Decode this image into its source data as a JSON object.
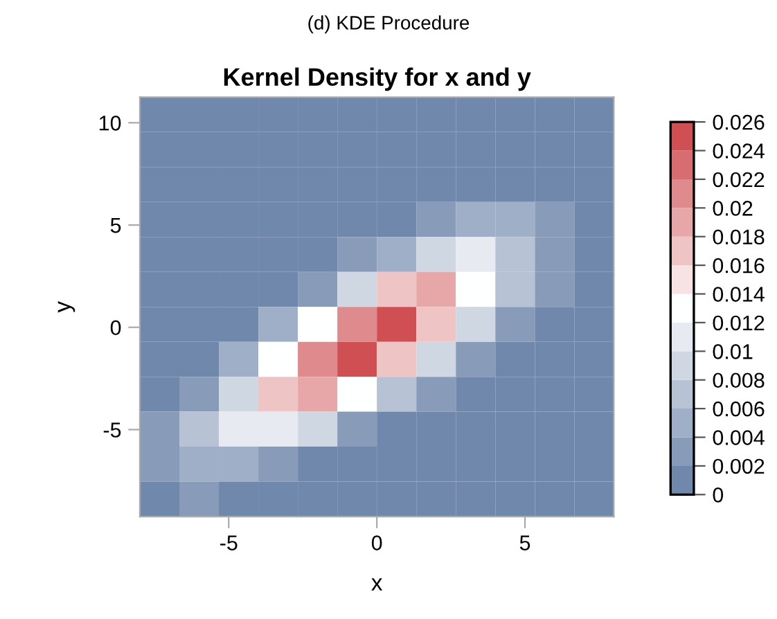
{
  "chart_data": {
    "type": "heatmap",
    "subtitle": "(d) KDE Procedure",
    "title": "Kernel Density for x and y",
    "xlabel": "x",
    "ylabel": "y",
    "xlim": [
      -8,
      8
    ],
    "ylim": [
      -9.25,
      11.25
    ],
    "xticks": [
      -5,
      0,
      5
    ],
    "yticks": [
      -5,
      0,
      5,
      10
    ],
    "clim": [
      0,
      0.026
    ],
    "cticks": [
      0,
      0.002,
      0.004,
      0.006,
      0.008,
      0.01,
      0.012,
      0.014,
      0.016,
      0.018,
      0.02,
      0.022,
      0.024,
      0.026
    ],
    "cells": [
      [
        0,
        0,
        0,
        0,
        0,
        0,
        0,
        0,
        0,
        0,
        0,
        0
      ],
      [
        0,
        0,
        0,
        0,
        0,
        0,
        0,
        0,
        0,
        0,
        0,
        0
      ],
      [
        0,
        0,
        0,
        0,
        0,
        0,
        0,
        0,
        0.001,
        0.001,
        0.001,
        0.001
      ],
      [
        0,
        0,
        0,
        0,
        0,
        0,
        0.001,
        0.002,
        0.004,
        0.004,
        0.003,
        0.001
      ],
      [
        0,
        0,
        0,
        0,
        0,
        0.002,
        0.005,
        0.009,
        0.01,
        0.007,
        0.003,
        0.001
      ],
      [
        0,
        0,
        0,
        0.001,
        0.003,
        0.009,
        0.016,
        0.018,
        0.013,
        0.006,
        0.002,
        0
      ],
      [
        0,
        0,
        0.001,
        0.004,
        0.012,
        0.021,
        0.024,
        0.017,
        0.008,
        0.002,
        0,
        0
      ],
      [
        0,
        0.001,
        0.004,
        0.012,
        0.021,
        0.024,
        0.017,
        0.008,
        0.002,
        0,
        0,
        0
      ],
      [
        0.001,
        0.003,
        0.009,
        0.017,
        0.018,
        0.013,
        0.006,
        0.002,
        0,
        0,
        0,
        0
      ],
      [
        0.002,
        0.006,
        0.01,
        0.011,
        0.008,
        0.003,
        0.001,
        0,
        0,
        0,
        0,
        0
      ],
      [
        0.003,
        0.004,
        0.005,
        0.003,
        0.001,
        0,
        0,
        0,
        0,
        0,
        0,
        0
      ],
      [
        0.001,
        0.002,
        0.001,
        0.001,
        0,
        0,
        0,
        0,
        0,
        0,
        0,
        0
      ]
    ],
    "grid": false
  }
}
